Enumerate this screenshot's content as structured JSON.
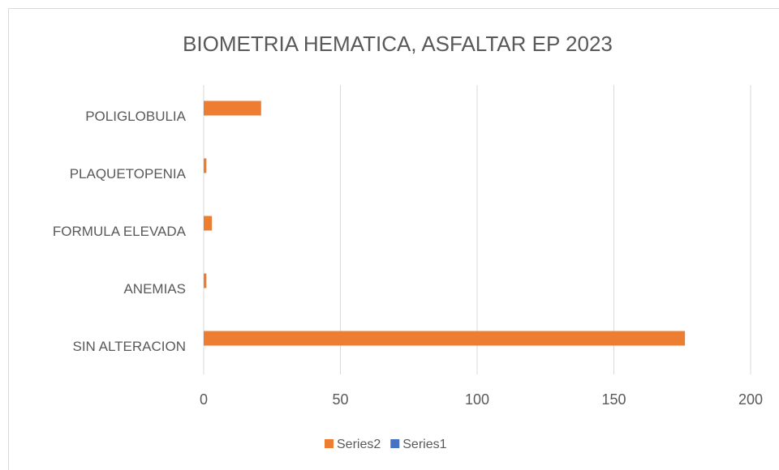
{
  "chart_data": {
    "type": "bar",
    "orientation": "horizontal",
    "title": "BIOMETRIA HEMATICA, ASFALTAR EP 2023",
    "categories": [
      "POLIGLOBULIA",
      "PLAQUETOPENIA",
      "FORMULA ELEVADA",
      "ANEMIAS",
      "SIN ALTERACION"
    ],
    "series": [
      {
        "name": "Series2",
        "color": "#ed7d31",
        "values": [
          21,
          1,
          3,
          1,
          176
        ]
      },
      {
        "name": "Series1",
        "color": "#4472c4",
        "values": [
          0,
          0,
          0,
          0,
          0
        ]
      }
    ],
    "xlim": [
      0,
      200
    ],
    "xticks": [
      0,
      50,
      100,
      150,
      200
    ],
    "grid": true,
    "legend": "bottom"
  }
}
